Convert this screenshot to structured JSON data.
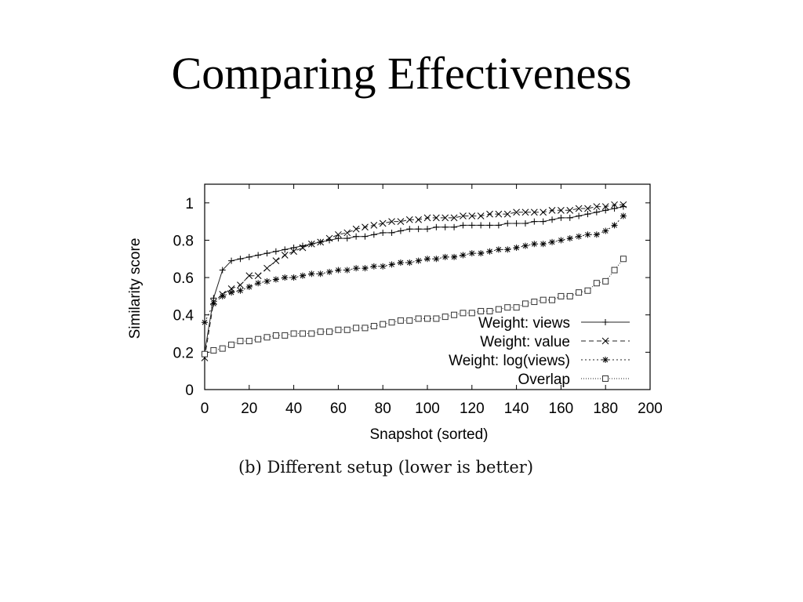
{
  "slide": {
    "title": "Comparing Effectiveness",
    "caption": "(b) Different setup (lower is better)"
  },
  "chart_data": {
    "type": "line",
    "title": "",
    "xlabel": "Snapshot (sorted)",
    "ylabel": "Similarity score",
    "xlim": [
      0,
      200
    ],
    "ylim": [
      0,
      1.1
    ],
    "xticks": [
      0,
      20,
      40,
      60,
      80,
      100,
      120,
      140,
      160,
      180,
      200
    ],
    "yticks": [
      0,
      0.2,
      0.4,
      0.6,
      0.8,
      1
    ],
    "xtick_labels": [
      "0",
      "20",
      "40",
      "60",
      "80",
      "100",
      "120",
      "140",
      "160",
      "180",
      "200"
    ],
    "ytick_labels": [
      "0",
      "0.2",
      "0.4",
      "0.6",
      "0.8",
      "1"
    ],
    "grid": false,
    "legend_position": "bottom-right",
    "series": [
      {
        "name": "Weight: views",
        "marker": "plus",
        "dash": "",
        "x": [
          0,
          4,
          8,
          12,
          16,
          20,
          24,
          28,
          32,
          36,
          40,
          44,
          48,
          52,
          56,
          60,
          64,
          68,
          72,
          76,
          80,
          84,
          88,
          92,
          96,
          100,
          104,
          108,
          112,
          116,
          120,
          124,
          128,
          132,
          136,
          140,
          144,
          148,
          152,
          156,
          160,
          164,
          168,
          172,
          176,
          180,
          184,
          188
        ],
        "y": [
          0.2,
          0.49,
          0.64,
          0.69,
          0.7,
          0.71,
          0.72,
          0.73,
          0.74,
          0.75,
          0.76,
          0.77,
          0.78,
          0.79,
          0.8,
          0.81,
          0.81,
          0.82,
          0.82,
          0.83,
          0.84,
          0.84,
          0.85,
          0.86,
          0.86,
          0.86,
          0.87,
          0.87,
          0.87,
          0.88,
          0.88,
          0.88,
          0.88,
          0.88,
          0.89,
          0.89,
          0.89,
          0.9,
          0.9,
          0.91,
          0.92,
          0.92,
          0.93,
          0.94,
          0.95,
          0.96,
          0.97,
          0.98
        ]
      },
      {
        "name": "Weight: value",
        "marker": "x",
        "dash": "6,4",
        "x": [
          0,
          4,
          8,
          12,
          16,
          20,
          24,
          28,
          32,
          36,
          40,
          44,
          48,
          52,
          56,
          60,
          64,
          68,
          72,
          76,
          80,
          84,
          88,
          92,
          96,
          100,
          104,
          108,
          112,
          116,
          120,
          124,
          128,
          132,
          136,
          140,
          144,
          148,
          152,
          156,
          160,
          164,
          168,
          172,
          176,
          180,
          184,
          188
        ],
        "y": [
          0.17,
          0.47,
          0.51,
          0.54,
          0.56,
          0.61,
          0.61,
          0.65,
          0.69,
          0.72,
          0.74,
          0.76,
          0.78,
          0.79,
          0.81,
          0.83,
          0.84,
          0.86,
          0.87,
          0.88,
          0.89,
          0.9,
          0.9,
          0.91,
          0.91,
          0.92,
          0.92,
          0.92,
          0.92,
          0.93,
          0.93,
          0.93,
          0.94,
          0.94,
          0.94,
          0.95,
          0.95,
          0.95,
          0.95,
          0.96,
          0.96,
          0.96,
          0.97,
          0.97,
          0.98,
          0.98,
          0.99,
          0.99
        ]
      },
      {
        "name": "Weight: log(views)",
        "marker": "star",
        "dash": "2,3",
        "x": [
          0,
          4,
          8,
          12,
          16,
          20,
          24,
          28,
          32,
          36,
          40,
          44,
          48,
          52,
          56,
          60,
          64,
          68,
          72,
          76,
          80,
          84,
          88,
          92,
          96,
          100,
          104,
          108,
          112,
          116,
          120,
          124,
          128,
          132,
          136,
          140,
          144,
          148,
          152,
          156,
          160,
          164,
          168,
          172,
          176,
          180,
          184,
          188
        ],
        "y": [
          0.36,
          0.46,
          0.5,
          0.52,
          0.53,
          0.55,
          0.57,
          0.58,
          0.59,
          0.6,
          0.6,
          0.61,
          0.62,
          0.62,
          0.63,
          0.64,
          0.64,
          0.65,
          0.65,
          0.66,
          0.66,
          0.67,
          0.68,
          0.68,
          0.69,
          0.7,
          0.7,
          0.71,
          0.71,
          0.72,
          0.73,
          0.73,
          0.74,
          0.75,
          0.75,
          0.76,
          0.77,
          0.78,
          0.78,
          0.79,
          0.8,
          0.81,
          0.82,
          0.83,
          0.83,
          0.85,
          0.88,
          0.93
        ]
      },
      {
        "name": "Overlap",
        "marker": "square",
        "dash": "1,2",
        "x": [
          0,
          4,
          8,
          12,
          16,
          20,
          24,
          28,
          32,
          36,
          40,
          44,
          48,
          52,
          56,
          60,
          64,
          68,
          72,
          76,
          80,
          84,
          88,
          92,
          96,
          100,
          104,
          108,
          112,
          116,
          120,
          124,
          128,
          132,
          136,
          140,
          144,
          148,
          152,
          156,
          160,
          164,
          168,
          172,
          176,
          180,
          184,
          188
        ],
        "y": [
          0.19,
          0.21,
          0.22,
          0.24,
          0.26,
          0.26,
          0.27,
          0.28,
          0.29,
          0.29,
          0.3,
          0.3,
          0.3,
          0.31,
          0.31,
          0.32,
          0.32,
          0.33,
          0.33,
          0.34,
          0.35,
          0.36,
          0.37,
          0.37,
          0.38,
          0.38,
          0.38,
          0.39,
          0.4,
          0.41,
          0.41,
          0.42,
          0.42,
          0.43,
          0.44,
          0.44,
          0.46,
          0.47,
          0.48,
          0.48,
          0.5,
          0.5,
          0.52,
          0.53,
          0.57,
          0.58,
          0.64,
          0.7
        ]
      }
    ]
  }
}
